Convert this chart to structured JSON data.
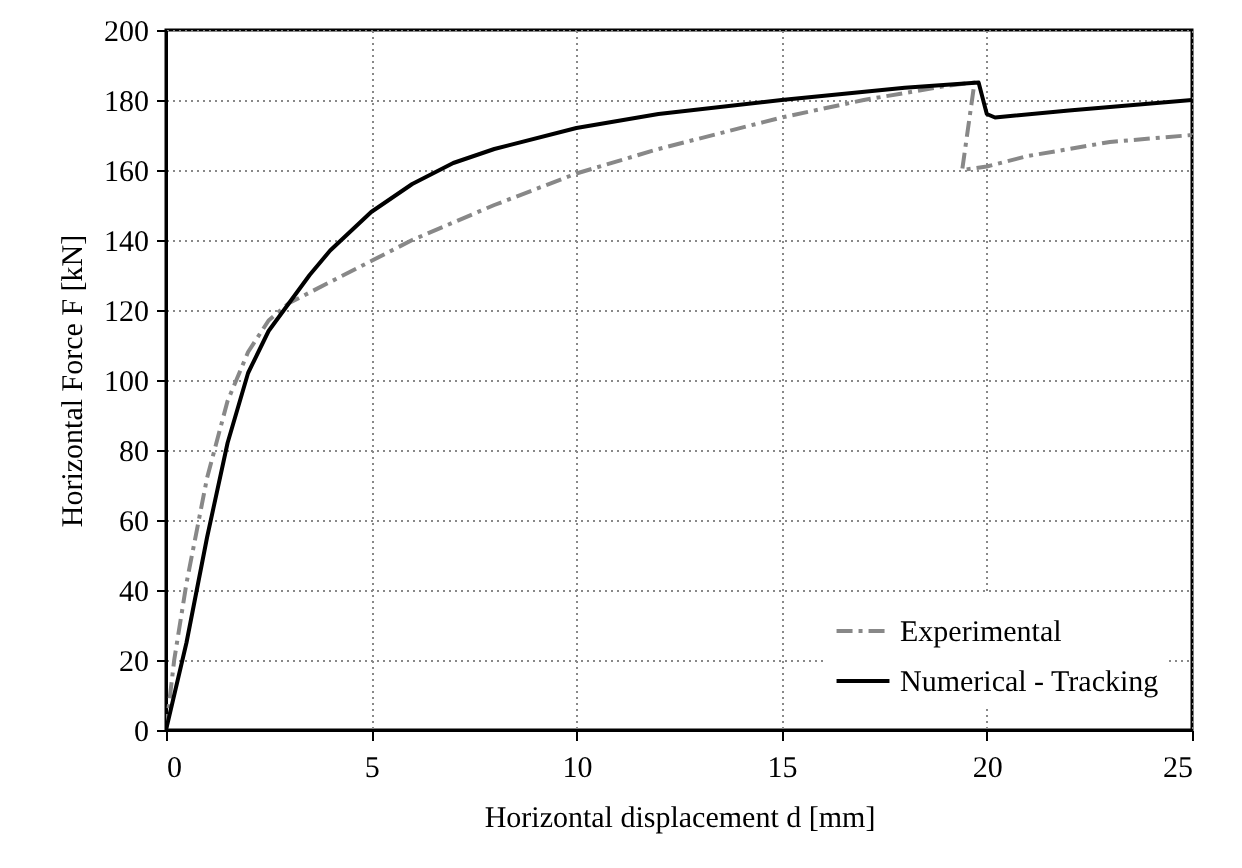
{
  "chart_data": {
    "type": "line",
    "xlabel": "Horizontal displacement d [mm]",
    "ylabel": "Horizontal Force F [kN]",
    "xlim": [
      0,
      25
    ],
    "xticks": [
      0,
      5,
      10,
      15,
      20,
      25
    ],
    "ylim": [
      0,
      200
    ],
    "yticks": [
      0,
      20,
      40,
      60,
      80,
      100,
      120,
      140,
      160,
      180,
      200
    ],
    "grid": true,
    "legend": "bottom right",
    "series": [
      {
        "name": "Experimental",
        "color": "#888888",
        "line_style": "dashed",
        "x": [
          0,
          0.2,
          0.5,
          1,
          1.5,
          2,
          2.5,
          3,
          4,
          5,
          6,
          8,
          10,
          12,
          15,
          17,
          19,
          19.7,
          19.4,
          20,
          21,
          22,
          23,
          25
        ],
        "values": [
          0,
          20,
          42,
          72,
          94,
          108,
          117,
          122,
          128,
          134,
          140,
          150,
          159,
          166,
          175,
          180,
          184,
          185,
          160,
          161,
          164,
          166,
          168,
          170
        ]
      },
      {
        "name": "Numerical - Tracking",
        "color": "#000000",
        "line_style": "solid",
        "x": [
          0,
          0.5,
          1,
          1.5,
          2,
          2.5,
          3,
          3.5,
          4,
          5,
          6,
          7,
          8,
          10,
          12,
          15,
          18,
          19.8,
          20,
          20.2,
          22,
          25
        ],
        "values": [
          0,
          25,
          55,
          82,
          102,
          114,
          122,
          130,
          137,
          148,
          156,
          162,
          166,
          172,
          176,
          180,
          183.5,
          185,
          176,
          175,
          177,
          180
        ]
      }
    ]
  }
}
